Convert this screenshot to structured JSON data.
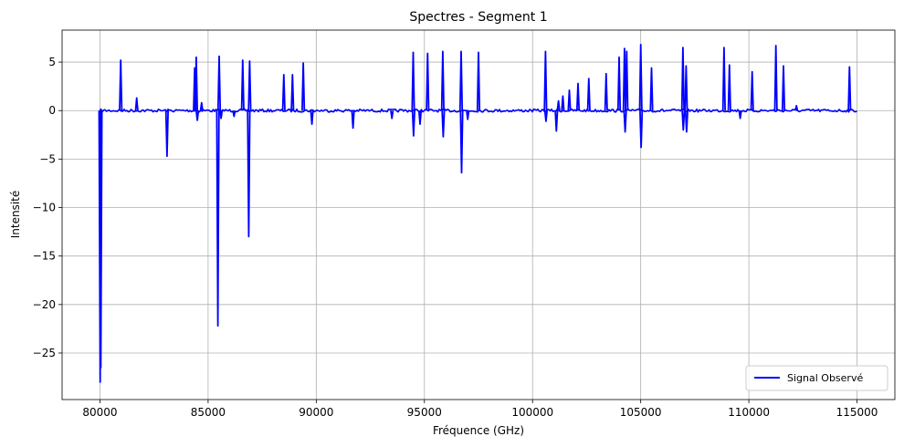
{
  "chart_data": {
    "type": "line",
    "title": "Spectres - Segment 1",
    "xlabel": "Fréquence (GHz)",
    "ylabel": "Intensité",
    "xlim": [
      78250,
      116750
    ],
    "ylim": [
      -29.8,
      8.3
    ],
    "xticks": [
      80000,
      85000,
      90000,
      95000,
      100000,
      105000,
      110000,
      115000
    ],
    "yticks": [
      5,
      0,
      -5,
      -10,
      -15,
      -20,
      -25
    ],
    "grid": true,
    "legend_position": "lower-right",
    "series": [
      {
        "name": "Signal Observé",
        "color": "#0000ff",
        "baseline": 0,
        "x_range": [
          80000,
          115000
        ],
        "peaks": [
          {
            "x": 80010,
            "y": -28.0
          },
          {
            "x": 80040,
            "y": -26.5
          },
          {
            "x": 80960,
            "y": 5.2
          },
          {
            "x": 81700,
            "y": 1.3
          },
          {
            "x": 83100,
            "y": -4.7
          },
          {
            "x": 84380,
            "y": 4.4
          },
          {
            "x": 84450,
            "y": 5.5
          },
          {
            "x": 84500,
            "y": -1.0
          },
          {
            "x": 84700,
            "y": 0.8
          },
          {
            "x": 85450,
            "y": -22.2
          },
          {
            "x": 85510,
            "y": 5.6
          },
          {
            "x": 85600,
            "y": -0.8
          },
          {
            "x": 86200,
            "y": -0.6
          },
          {
            "x": 86600,
            "y": 5.2
          },
          {
            "x": 86880,
            "y": -13.0
          },
          {
            "x": 86920,
            "y": 5.1
          },
          {
            "x": 88500,
            "y": 3.7
          },
          {
            "x": 88900,
            "y": 3.7
          },
          {
            "x": 89400,
            "y": 4.9
          },
          {
            "x": 89800,
            "y": -1.4
          },
          {
            "x": 91700,
            "y": -1.8
          },
          {
            "x": 93500,
            "y": -0.8
          },
          {
            "x": 94480,
            "y": 6.0
          },
          {
            "x": 94500,
            "y": -2.6
          },
          {
            "x": 94800,
            "y": -1.4
          },
          {
            "x": 95150,
            "y": 5.9
          },
          {
            "x": 95850,
            "y": 6.1
          },
          {
            "x": 95870,
            "y": -2.7
          },
          {
            "x": 96700,
            "y": 6.1
          },
          {
            "x": 96720,
            "y": -6.4
          },
          {
            "x": 97000,
            "y": -0.9
          },
          {
            "x": 97500,
            "y": 6.0
          },
          {
            "x": 100600,
            "y": 6.1
          },
          {
            "x": 100620,
            "y": -1.1
          },
          {
            "x": 101100,
            "y": -2.1
          },
          {
            "x": 101200,
            "y": 1.0
          },
          {
            "x": 101400,
            "y": 1.5
          },
          {
            "x": 101700,
            "y": 2.1
          },
          {
            "x": 102100,
            "y": 2.8
          },
          {
            "x": 102600,
            "y": 3.3
          },
          {
            "x": 103400,
            "y": 3.8
          },
          {
            "x": 104000,
            "y": 5.5
          },
          {
            "x": 104250,
            "y": 6.4
          },
          {
            "x": 104280,
            "y": -2.2
          },
          {
            "x": 104350,
            "y": 6.1
          },
          {
            "x": 105000,
            "y": 6.8
          },
          {
            "x": 105020,
            "y": -3.8
          },
          {
            "x": 105500,
            "y": 4.4
          },
          {
            "x": 106950,
            "y": 6.5
          },
          {
            "x": 106970,
            "y": -2.0
          },
          {
            "x": 107100,
            "y": 4.6
          },
          {
            "x": 107120,
            "y": -2.2
          },
          {
            "x": 108850,
            "y": 6.5
          },
          {
            "x": 109100,
            "y": 4.7
          },
          {
            "x": 109600,
            "y": -0.8
          },
          {
            "x": 110150,
            "y": 4.0
          },
          {
            "x": 111250,
            "y": 6.7
          },
          {
            "x": 111600,
            "y": 4.6
          },
          {
            "x": 112200,
            "y": 0.5
          },
          {
            "x": 114650,
            "y": 4.5
          }
        ]
      }
    ]
  }
}
